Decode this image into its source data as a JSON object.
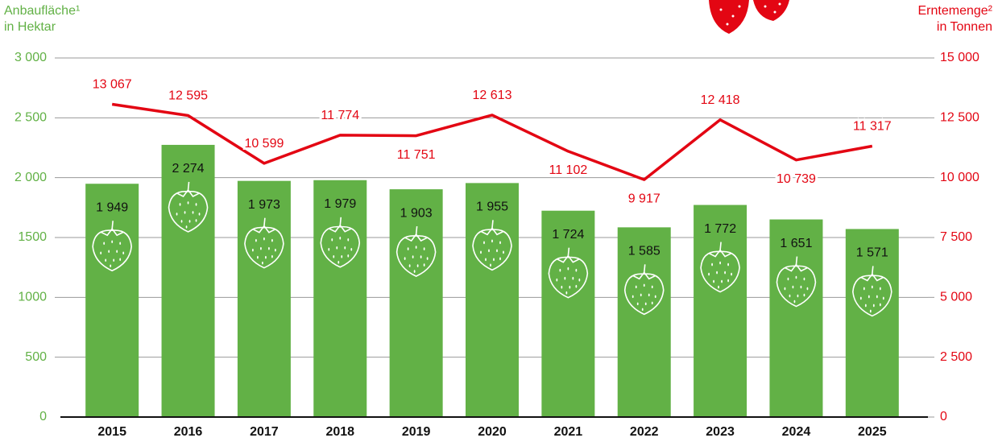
{
  "chart_data": {
    "type": "bar-line",
    "y_label": [
      "Anbaufläche¹",
      "in Hektar"
    ],
    "y2_label": [
      "Erntemenge²",
      "in Tonnen"
    ],
    "categories": [
      "2015",
      "2016",
      "2017",
      "2018",
      "2019",
      "2020",
      "2021",
      "2022",
      "2023",
      "2024",
      "2025"
    ],
    "series": [
      {
        "type": "bar",
        "color": "#62b146",
        "values": [
          1949,
          2274,
          1973,
          1979,
          1903,
          1955,
          1724,
          1585,
          1772,
          1651,
          1571
        ],
        "value_labels": [
          "1 949",
          "2 274",
          "1 973",
          "1 979",
          "1 903",
          "1 955",
          "1 724",
          "1 585",
          "1 772",
          "1 651",
          "1 571"
        ]
      },
      {
        "type": "line",
        "axis": "y2",
        "color": "#e30613",
        "values": [
          13067,
          12595,
          10599,
          11774,
          11751,
          12613,
          11102,
          9917,
          12418,
          10739,
          11317
        ],
        "value_labels": [
          "13 067",
          "12 595",
          "10 599",
          "11 774",
          "11 751",
          "12 613",
          "11 102",
          "9 917",
          "12 418",
          "10 739",
          "11 317"
        ]
      }
    ],
    "ylim": [
      0,
      3000
    ],
    "yticks": [
      0,
      500,
      1000,
      1500,
      {
        "value": 2000,
        "label": "2 000"
      },
      {
        "value": 2500,
        "label": "2 500"
      },
      {
        "value": 3000,
        "label": "3 000"
      }
    ],
    "y2lim": [
      0,
      15000
    ],
    "y2ticks": [
      0,
      {
        "value": 2500,
        "label": "2 500"
      },
      {
        "value": 5000,
        "label": "5 000"
      },
      {
        "value": 7500,
        "label": "7 500"
      },
      {
        "value": 10000,
        "label": "10 000"
      },
      {
        "value": 12500,
        "label": "12 500"
      },
      {
        "value": 15000,
        "label": "15 000"
      }
    ],
    "grid": true
  }
}
